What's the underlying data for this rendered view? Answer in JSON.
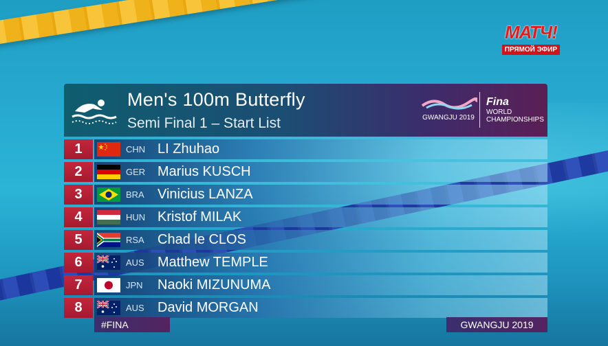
{
  "broadcaster": {
    "name": "МАТЧ!",
    "live_label": "ПРЯМОЙ ЭФИР"
  },
  "event": {
    "title": "Men's 100m Butterfly",
    "subtitle": "Semi Final 1 – Start List"
  },
  "sponsor": {
    "gwangju": "GWANGJU 2019",
    "fina": "Fina",
    "world": "WORLD",
    "championships": "CHAMPIONSHIPS"
  },
  "athletes": [
    {
      "rank": "1",
      "code": "CHN",
      "name": "LI Zhuhao",
      "flag": "china-flag"
    },
    {
      "rank": "2",
      "code": "GER",
      "name": "Marius KUSCH",
      "flag": "germany-flag"
    },
    {
      "rank": "3",
      "code": "BRA",
      "name": "Vinicius LANZA",
      "flag": "brazil-flag"
    },
    {
      "rank": "4",
      "code": "HUN",
      "name": "Kristof MILAK",
      "flag": "hungary-flag"
    },
    {
      "rank": "5",
      "code": "RSA",
      "name": "Chad le CLOS",
      "flag": "south-africa-flag"
    },
    {
      "rank": "6",
      "code": "AUS",
      "name": "Matthew TEMPLE",
      "flag": "australia-flag"
    },
    {
      "rank": "7",
      "code": "JPN",
      "name": "Naoki MIZUNUMA",
      "flag": "japan-flag"
    },
    {
      "rank": "8",
      "code": "AUS",
      "name": "David MORGAN",
      "flag": "australia-flag"
    }
  ],
  "footer": {
    "hashtag": "#FINA",
    "location": "GWANGJU 2019"
  },
  "colors": {
    "rank_red": "#b3203a",
    "header_teal": "#0f5d6f",
    "header_purple": "#5b1f55"
  }
}
